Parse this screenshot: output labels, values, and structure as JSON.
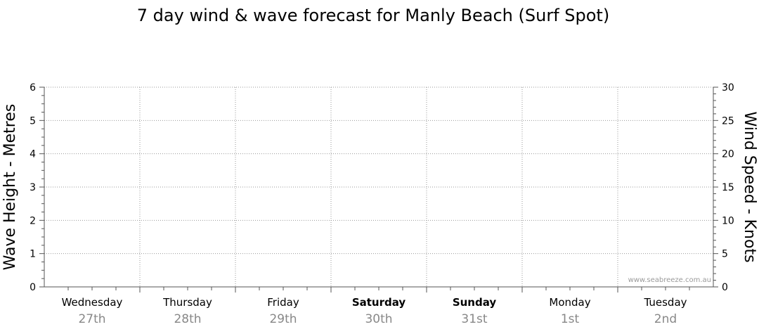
{
  "chart_data": {
    "type": "line",
    "title": "7 day wind & wave forecast for Manly Beach  (Surf Spot)",
    "ylabel": "Wave Height - Metres",
    "y2label": "Wind Speed - Knots",
    "ylim": [
      0,
      6
    ],
    "y2lim": [
      0,
      30
    ],
    "yticks": [
      "0",
      "1",
      "2",
      "3",
      "4",
      "5",
      "6"
    ],
    "y2ticks": [
      "0",
      "5",
      "10",
      "15",
      "20",
      "25",
      "30"
    ],
    "grid": true,
    "days": [
      {
        "day": "Wednesday",
        "date": "27th",
        "bold": false
      },
      {
        "day": "Thursday",
        "date": "28th",
        "bold": false
      },
      {
        "day": "Friday",
        "date": "29th",
        "bold": false
      },
      {
        "day": "Saturday",
        "date": "30th",
        "bold": true
      },
      {
        "day": "Sunday",
        "date": "31st",
        "bold": true
      },
      {
        "day": "Monday",
        "date": "1st",
        "bold": false
      },
      {
        "day": "Tuesday",
        "date": "2nd",
        "bold": false
      }
    ],
    "series": []
  },
  "watermark": "www.seabreeze.com.au"
}
